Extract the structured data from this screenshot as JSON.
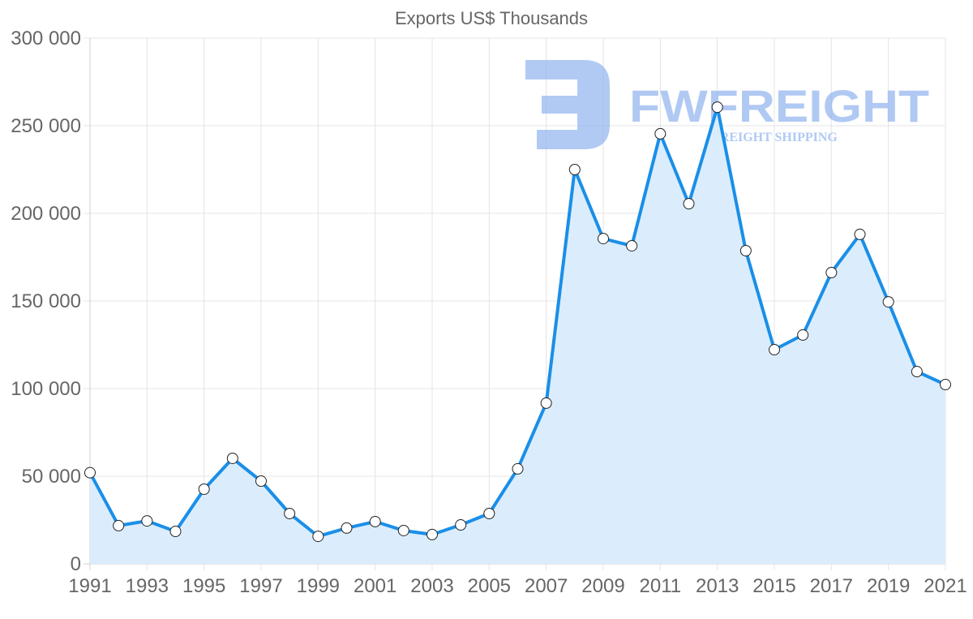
{
  "chart_data": {
    "type": "line",
    "title": "Exports US$ Thousands",
    "xlabel": "",
    "ylabel": "",
    "x": [
      1991,
      1992,
      1993,
      1994,
      1995,
      1996,
      1997,
      1998,
      1999,
      2000,
      2001,
      2002,
      2003,
      2004,
      2005,
      2006,
      2007,
      2008,
      2009,
      2010,
      2011,
      2012,
      2013,
      2014,
      2015,
      2016,
      2017,
      2018,
      2019,
      2020,
      2021
    ],
    "series": [
      {
        "name": "Exports",
        "values": [
          52000,
          21800,
          24500,
          18500,
          42600,
          60200,
          47200,
          28700,
          15700,
          20400,
          24100,
          19000,
          16700,
          22200,
          28700,
          54200,
          91700,
          225000,
          185600,
          181500,
          245400,
          205500,
          260600,
          178700,
          122200,
          130600,
          166200,
          188000,
          149500,
          109700,
          102300
        ],
        "color": "#1a8fe8",
        "fill": "#d9ecfd"
      }
    ],
    "xticks": [
      "1991",
      "1993",
      "1995",
      "1997",
      "1999",
      "2001",
      "2003",
      "2005",
      "2007",
      "2009",
      "2011",
      "2013",
      "2015",
      "2017",
      "2019",
      "2021"
    ],
    "yticks": [
      "0",
      "50 000",
      "100 000",
      "150 000",
      "200 000",
      "250 000",
      "300 000"
    ],
    "ylim": [
      0,
      300000
    ],
    "xlim": [
      1991,
      2021
    ],
    "grid": true,
    "legend": "none",
    "area_fill": true
  },
  "watermark": {
    "brand": "FWFREIGHT",
    "tagline": "FREIGHT SHIPPING",
    "color": "#8fb3ee"
  }
}
